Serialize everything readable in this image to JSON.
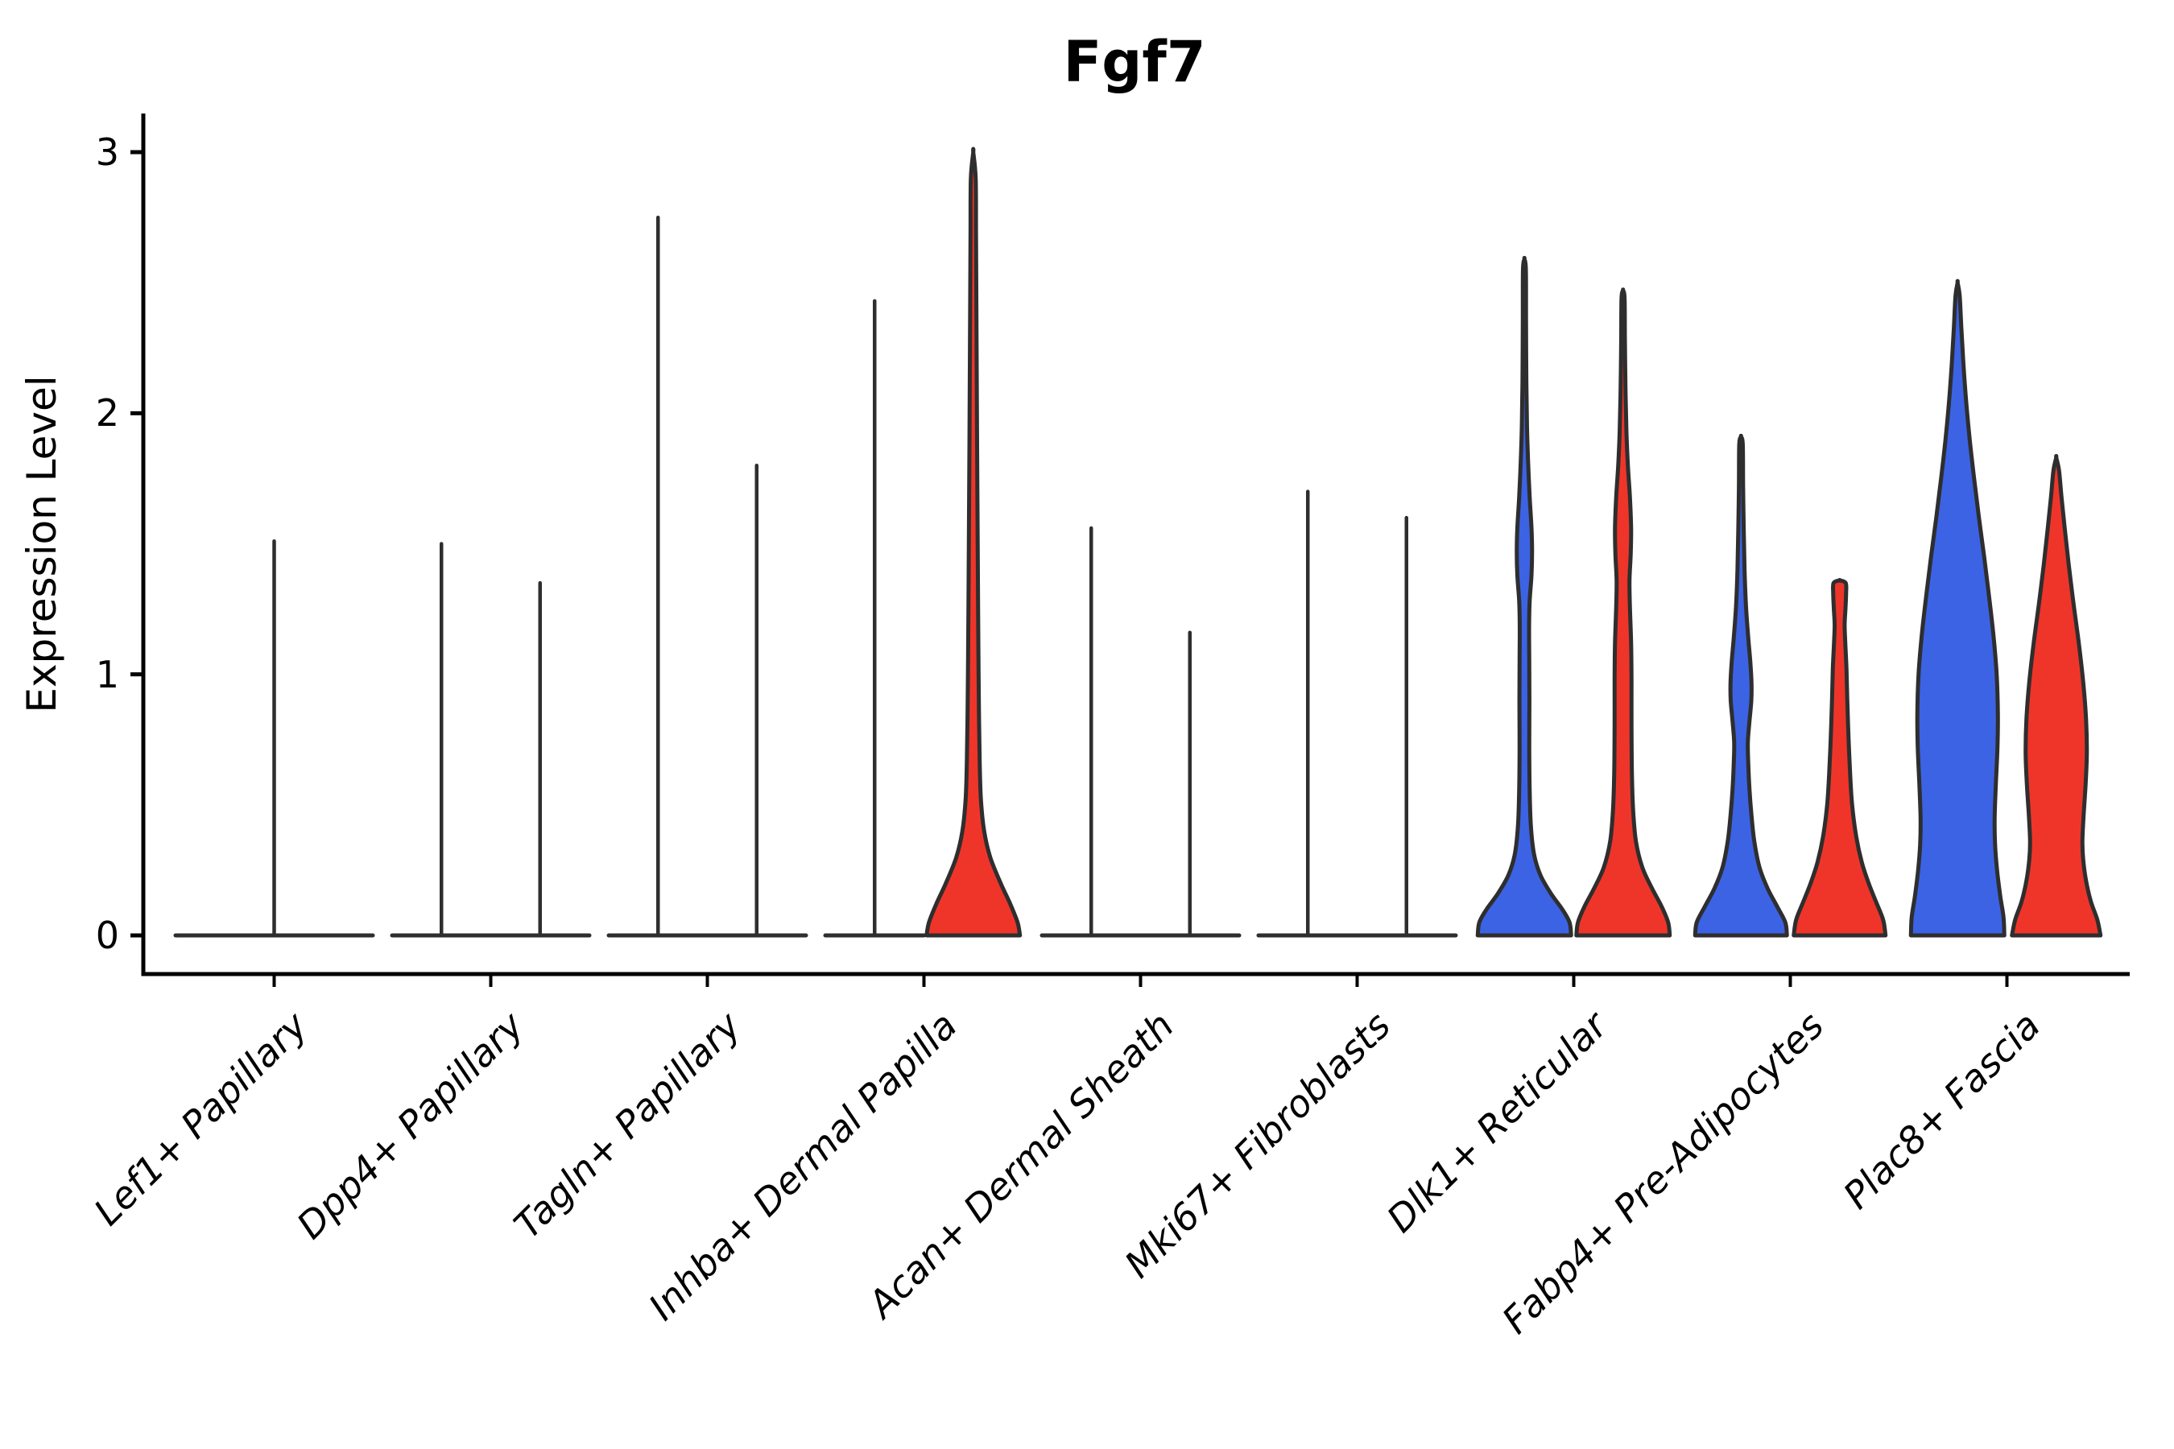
{
  "title": "Fgf7",
  "axes": {
    "ylabel": "Expression Level",
    "ytick_labels": [
      "0",
      "1",
      "2",
      "3"
    ]
  },
  "chart_data": {
    "type": "violin",
    "title": "Fgf7",
    "xlabel": "",
    "ylabel": "Expression Level",
    "yticks": [
      0,
      1,
      2,
      3
    ],
    "ylim": [
      -0.15,
      3.15
    ],
    "grid": false,
    "legend": "none",
    "colors": {
      "blue_fill": "#3C63E4",
      "red_fill": "#EF352A",
      "outline": "#2E2E2E",
      "axis": "#000000"
    },
    "categories": [
      "Lef1+ Papillary",
      "Dpp4+ Papillary",
      "Tagln+ Papillary",
      "Inhba+ Dermal Papilla",
      "Acan+ Dermal Sheath",
      "Mki67+ Fibroblasts",
      "Dlk1+ Reticular",
      "Fabp4+ Pre-Adipocytes",
      "Plac8+ Fascia"
    ],
    "violins": [
      {
        "category": "Lef1+ Papillary",
        "items": [
          {
            "side": "full",
            "fill": "none",
            "shape": "spike",
            "max_expression": 1.51
          }
        ]
      },
      {
        "category": "Dpp4+ Papillary",
        "items": [
          {
            "side": "left",
            "fill": "none",
            "shape": "spike",
            "max_expression": 1.5
          },
          {
            "side": "right",
            "fill": "none",
            "shape": "spike",
            "max_expression": 1.35
          }
        ]
      },
      {
        "category": "Tagln+ Papillary",
        "items": [
          {
            "side": "left",
            "fill": "none",
            "shape": "spike",
            "max_expression": 2.75
          },
          {
            "side": "right",
            "fill": "none",
            "shape": "spike",
            "max_expression": 1.8
          }
        ]
      },
      {
        "category": "Inhba+ Dermal Papilla",
        "items": [
          {
            "side": "left",
            "fill": "none",
            "shape": "spike",
            "max_expression": 2.43
          },
          {
            "side": "right",
            "fill": "red",
            "shape": "violin",
            "max_expression": 3.0,
            "profile": [
              [
                0,
                58
              ],
              [
                0.05,
                55
              ],
              [
                0.12,
                46
              ],
              [
                0.2,
                34
              ],
              [
                0.3,
                21
              ],
              [
                0.4,
                13.5
              ],
              [
                0.52,
                9.5
              ],
              [
                0.66,
                8
              ],
              [
                0.82,
                7.2
              ],
              [
                1.0,
                6.6
              ],
              [
                1.25,
                6
              ],
              [
                1.55,
                5.4
              ],
              [
                1.85,
                4.8
              ],
              [
                2.15,
                4.3
              ],
              [
                2.45,
                3.8
              ],
              [
                2.7,
                3.4
              ],
              [
                2.9,
                3
              ],
              [
                3.0,
                0
              ]
            ]
          }
        ]
      },
      {
        "category": "Acan+ Dermal Sheath",
        "items": [
          {
            "side": "left",
            "fill": "none",
            "shape": "spike",
            "max_expression": 1.56
          },
          {
            "side": "right",
            "fill": "none",
            "shape": "spike",
            "max_expression": 1.16
          }
        ]
      },
      {
        "category": "Mki67+ Fibroblasts",
        "items": [
          {
            "side": "left",
            "fill": "none",
            "shape": "spike",
            "max_expression": 1.7
          },
          {
            "side": "right",
            "fill": "none",
            "shape": "spike",
            "max_expression": 1.6
          }
        ]
      },
      {
        "category": "Dlk1+ Reticular",
        "items": [
          {
            "side": "left",
            "fill": "blue",
            "shape": "violin",
            "max_expression": 2.59,
            "profile": [
              [
                0,
                58
              ],
              [
                0.05,
                56
              ],
              [
                0.1,
                47
              ],
              [
                0.16,
                33
              ],
              [
                0.23,
                20
              ],
              [
                0.31,
                12
              ],
              [
                0.42,
                8
              ],
              [
                0.56,
                6.5
              ],
              [
                0.72,
                6
              ],
              [
                0.9,
                6.2
              ],
              [
                1.05,
                6
              ],
              [
                1.18,
                5.8
              ],
              [
                1.28,
                6.5
              ],
              [
                1.38,
                8.8
              ],
              [
                1.47,
                9.5
              ],
              [
                1.56,
                8.8
              ],
              [
                1.68,
                6.5
              ],
              [
                1.82,
                4.5
              ],
              [
                1.95,
                3.2
              ],
              [
                2.12,
                2.4
              ],
              [
                2.35,
                2
              ],
              [
                2.55,
                1.8
              ],
              [
                2.59,
                0
              ]
            ]
          },
          {
            "side": "right",
            "fill": "red",
            "shape": "violin",
            "max_expression": 2.47,
            "profile": [
              [
                0,
                58
              ],
              [
                0.05,
                56
              ],
              [
                0.11,
                48
              ],
              [
                0.18,
                36
              ],
              [
                0.26,
                24
              ],
              [
                0.36,
                16
              ],
              [
                0.48,
                12.5
              ],
              [
                0.62,
                11
              ],
              [
                0.8,
                10.5
              ],
              [
                0.98,
                10.5
              ],
              [
                1.12,
                10
              ],
              [
                1.26,
                8.5
              ],
              [
                1.36,
                8
              ],
              [
                1.46,
                9.5
              ],
              [
                1.56,
                10
              ],
              [
                1.68,
                8.5
              ],
              [
                1.8,
                6
              ],
              [
                1.93,
                4.2
              ],
              [
                2.1,
                3
              ],
              [
                2.28,
                2.3
              ],
              [
                2.44,
                1.9
              ],
              [
                2.47,
                0
              ]
            ]
          }
        ]
      },
      {
        "category": "Fabp4+ Pre-Adipocytes",
        "items": [
          {
            "side": "left",
            "fill": "blue",
            "shape": "violin",
            "max_expression": 1.91,
            "profile": [
              [
                0,
                57
              ],
              [
                0.05,
                55
              ],
              [
                0.11,
                45
              ],
              [
                0.18,
                33
              ],
              [
                0.26,
                23
              ],
              [
                0.36,
                16.5
              ],
              [
                0.46,
                13
              ],
              [
                0.56,
                10.5
              ],
              [
                0.66,
                9
              ],
              [
                0.74,
                8.5
              ],
              [
                0.82,
                10.5
              ],
              [
                0.9,
                12.8
              ],
              [
                0.97,
                13
              ],
              [
                1.05,
                11.5
              ],
              [
                1.14,
                9
              ],
              [
                1.26,
                6.2
              ],
              [
                1.4,
                4.4
              ],
              [
                1.55,
                3.4
              ],
              [
                1.72,
                2.6
              ],
              [
                1.88,
                2.2
              ],
              [
                1.91,
                0
              ]
            ]
          },
          {
            "side": "right",
            "fill": "red",
            "shape": "violin",
            "max_expression": 1.36,
            "profile": [
              [
                0,
                57
              ],
              [
                0.06,
                54
              ],
              [
                0.13,
                45
              ],
              [
                0.2,
                36
              ],
              [
                0.28,
                27.5
              ],
              [
                0.38,
                20.5
              ],
              [
                0.5,
                15.5
              ],
              [
                0.62,
                13
              ],
              [
                0.76,
                11
              ],
              [
                0.9,
                9.5
              ],
              [
                1.02,
                8.5
              ],
              [
                1.12,
                7
              ],
              [
                1.19,
                6.2
              ],
              [
                1.25,
                7.2
              ],
              [
                1.31,
                8
              ],
              [
                1.35,
                7.5
              ],
              [
                1.36,
                0
              ]
            ]
          }
        ]
      },
      {
        "category": "Plac8+ Fascia",
        "items": [
          {
            "side": "left",
            "fill": "blue",
            "shape": "violin",
            "max_expression": 2.5,
            "profile": [
              [
                0,
                58
              ],
              [
                0.07,
                57
              ],
              [
                0.15,
                53
              ],
              [
                0.25,
                49
              ],
              [
                0.35,
                46.5
              ],
              [
                0.45,
                46
              ],
              [
                0.58,
                47.5
              ],
              [
                0.72,
                49.5
              ],
              [
                0.85,
                50
              ],
              [
                1.0,
                48.5
              ],
              [
                1.15,
                44.5
              ],
              [
                1.3,
                39
              ],
              [
                1.45,
                33
              ],
              [
                1.6,
                26.5
              ],
              [
                1.75,
                20.5
              ],
              [
                1.9,
                15
              ],
              [
                2.05,
                10.5
              ],
              [
                2.2,
                7
              ],
              [
                2.33,
                4.6
              ],
              [
                2.45,
                2.6
              ],
              [
                2.5,
                0
              ]
            ]
          },
          {
            "side": "right",
            "fill": "red",
            "shape": "violin",
            "max_expression": 1.83,
            "profile": [
              [
                0,
                55
              ],
              [
                0.06,
                51
              ],
              [
                0.13,
                43
              ],
              [
                0.21,
                37
              ],
              [
                0.29,
                33.5
              ],
              [
                0.36,
                32.5
              ],
              [
                0.46,
                34
              ],
              [
                0.58,
                36.5
              ],
              [
                0.7,
                38
              ],
              [
                0.83,
                37
              ],
              [
                0.97,
                33.5
              ],
              [
                1.12,
                28
              ],
              [
                1.27,
                21.5
              ],
              [
                1.42,
                15.5
              ],
              [
                1.56,
                10.5
              ],
              [
                1.68,
                6.5
              ],
              [
                1.78,
                3.5
              ],
              [
                1.83,
                0
              ]
            ]
          }
        ]
      }
    ]
  }
}
